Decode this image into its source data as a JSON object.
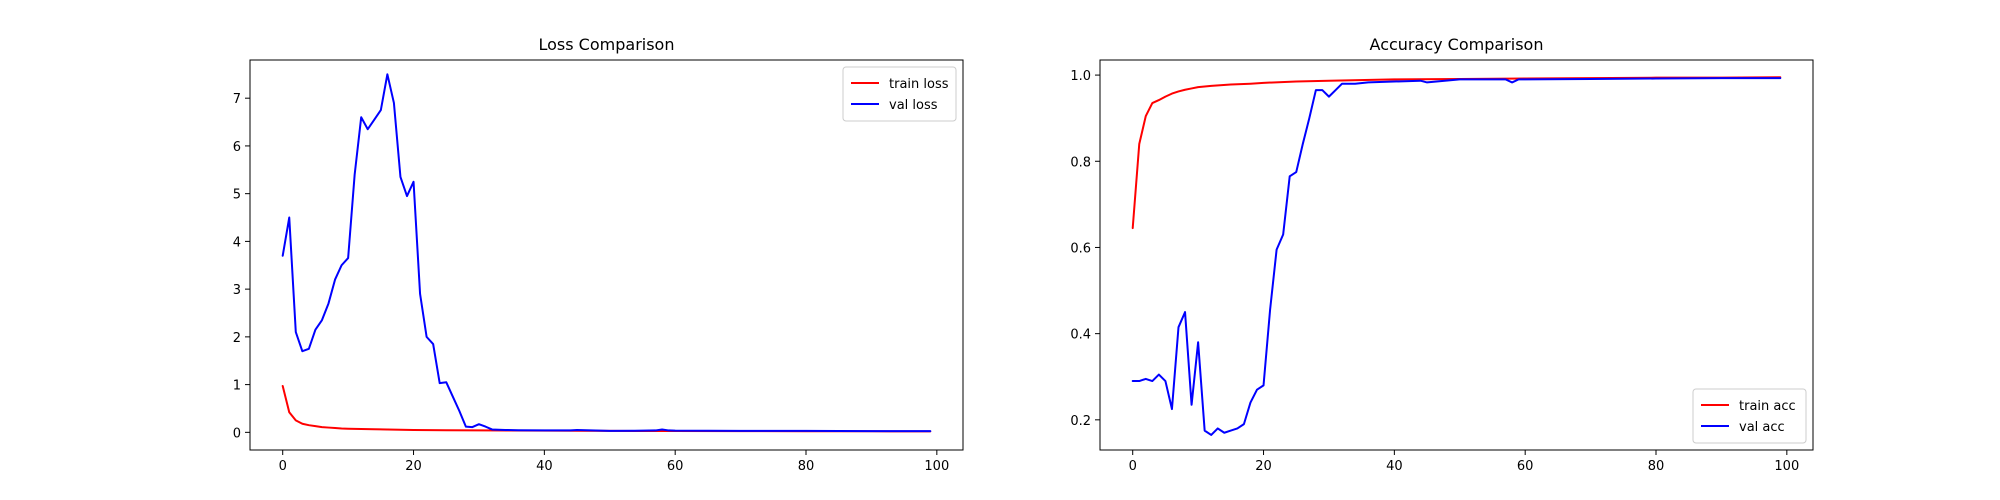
{
  "chart_data": [
    {
      "type": "line",
      "title": "Loss Comparison",
      "xlabel": "",
      "ylabel": "",
      "xlim": [
        -5,
        104
      ],
      "ylim": [
        -0.37,
        7.8
      ],
      "xticks": [
        0,
        20,
        40,
        60,
        80,
        100
      ],
      "yticks": [
        0,
        1,
        2,
        3,
        4,
        5,
        6,
        7
      ],
      "legend": "top-right",
      "grid": false,
      "series": [
        {
          "name": "train loss",
          "color": "#ff0000",
          "x": [
            0,
            1,
            2,
            3,
            4,
            5,
            6,
            7,
            8,
            9,
            10,
            12,
            14,
            16,
            18,
            20,
            25,
            30,
            40,
            50,
            60,
            70,
            80,
            90,
            99
          ],
          "y": [
            0.97,
            0.42,
            0.25,
            0.18,
            0.15,
            0.13,
            0.11,
            0.1,
            0.09,
            0.08,
            0.075,
            0.07,
            0.065,
            0.06,
            0.055,
            0.05,
            0.045,
            0.04,
            0.035,
            0.03,
            0.028,
            0.026,
            0.024,
            0.022,
            0.02
          ]
        },
        {
          "name": "val loss",
          "color": "#0000ff",
          "x": [
            0,
            1,
            2,
            3,
            4,
            5,
            6,
            7,
            8,
            9,
            10,
            11,
            12,
            13,
            14,
            15,
            16,
            17,
            18,
            19,
            20,
            21,
            22,
            23,
            24,
            25,
            26,
            27,
            28,
            29,
            30,
            31,
            32,
            34,
            36,
            40,
            44,
            45,
            50,
            55,
            57,
            58,
            59,
            60,
            70,
            80,
            90,
            99
          ],
          "y": [
            3.7,
            4.5,
            2.1,
            1.7,
            1.75,
            2.15,
            2.35,
            2.7,
            3.2,
            3.5,
            3.65,
            5.4,
            6.6,
            6.35,
            6.55,
            6.75,
            7.5,
            6.9,
            5.35,
            4.95,
            5.25,
            2.9,
            2.0,
            1.85,
            1.03,
            1.05,
            0.75,
            0.45,
            0.12,
            0.11,
            0.17,
            0.12,
            0.06,
            0.05,
            0.045,
            0.04,
            0.04,
            0.05,
            0.03,
            0.035,
            0.04,
            0.06,
            0.04,
            0.035,
            0.03,
            0.03,
            0.025,
            0.025
          ]
        }
      ]
    },
    {
      "type": "line",
      "title": "Accuracy Comparison",
      "xlabel": "",
      "ylabel": "",
      "xlim": [
        -5,
        104
      ],
      "ylim": [
        0.13,
        1.035
      ],
      "xticks": [
        0,
        20,
        40,
        60,
        80,
        100
      ],
      "yticks": [
        0.2,
        0.4,
        0.6,
        0.8,
        1.0
      ],
      "yticklabels": [
        "0.2",
        "0.4",
        "0.6",
        "0.8",
        "1.0"
      ],
      "legend": "bottom-right",
      "grid": false,
      "series": [
        {
          "name": "train acc",
          "color": "#ff0000",
          "x": [
            0,
            1,
            2,
            3,
            4,
            5,
            6,
            7,
            8,
            9,
            10,
            12,
            15,
            18,
            20,
            25,
            30,
            40,
            50,
            60,
            70,
            80,
            90,
            99
          ],
          "y": [
            0.645,
            0.84,
            0.905,
            0.935,
            0.942,
            0.95,
            0.957,
            0.962,
            0.966,
            0.969,
            0.972,
            0.975,
            0.978,
            0.98,
            0.982,
            0.985,
            0.987,
            0.99,
            0.991,
            0.992,
            0.993,
            0.994,
            0.994,
            0.995
          ]
        },
        {
          "name": "val acc",
          "color": "#0000ff",
          "x": [
            0,
            1,
            2,
            3,
            4,
            5,
            6,
            7,
            8,
            9,
            10,
            11,
            12,
            13,
            14,
            15,
            16,
            17,
            18,
            19,
            20,
            21,
            22,
            23,
            24,
            25,
            26,
            27,
            28,
            29,
            30,
            31,
            32,
            34,
            36,
            40,
            44,
            45,
            50,
            57,
            58,
            59,
            60,
            70,
            80,
            90,
            99
          ],
          "y": [
            0.29,
            0.29,
            0.295,
            0.29,
            0.305,
            0.29,
            0.225,
            0.415,
            0.45,
            0.235,
            0.38,
            0.175,
            0.165,
            0.18,
            0.17,
            0.175,
            0.18,
            0.19,
            0.24,
            0.27,
            0.28,
            0.455,
            0.595,
            0.63,
            0.765,
            0.775,
            0.84,
            0.9,
            0.965,
            0.965,
            0.95,
            0.965,
            0.98,
            0.98,
            0.983,
            0.985,
            0.987,
            0.983,
            0.99,
            0.99,
            0.983,
            0.99,
            0.99,
            0.991,
            0.992,
            0.993,
            0.993
          ]
        }
      ]
    }
  ]
}
